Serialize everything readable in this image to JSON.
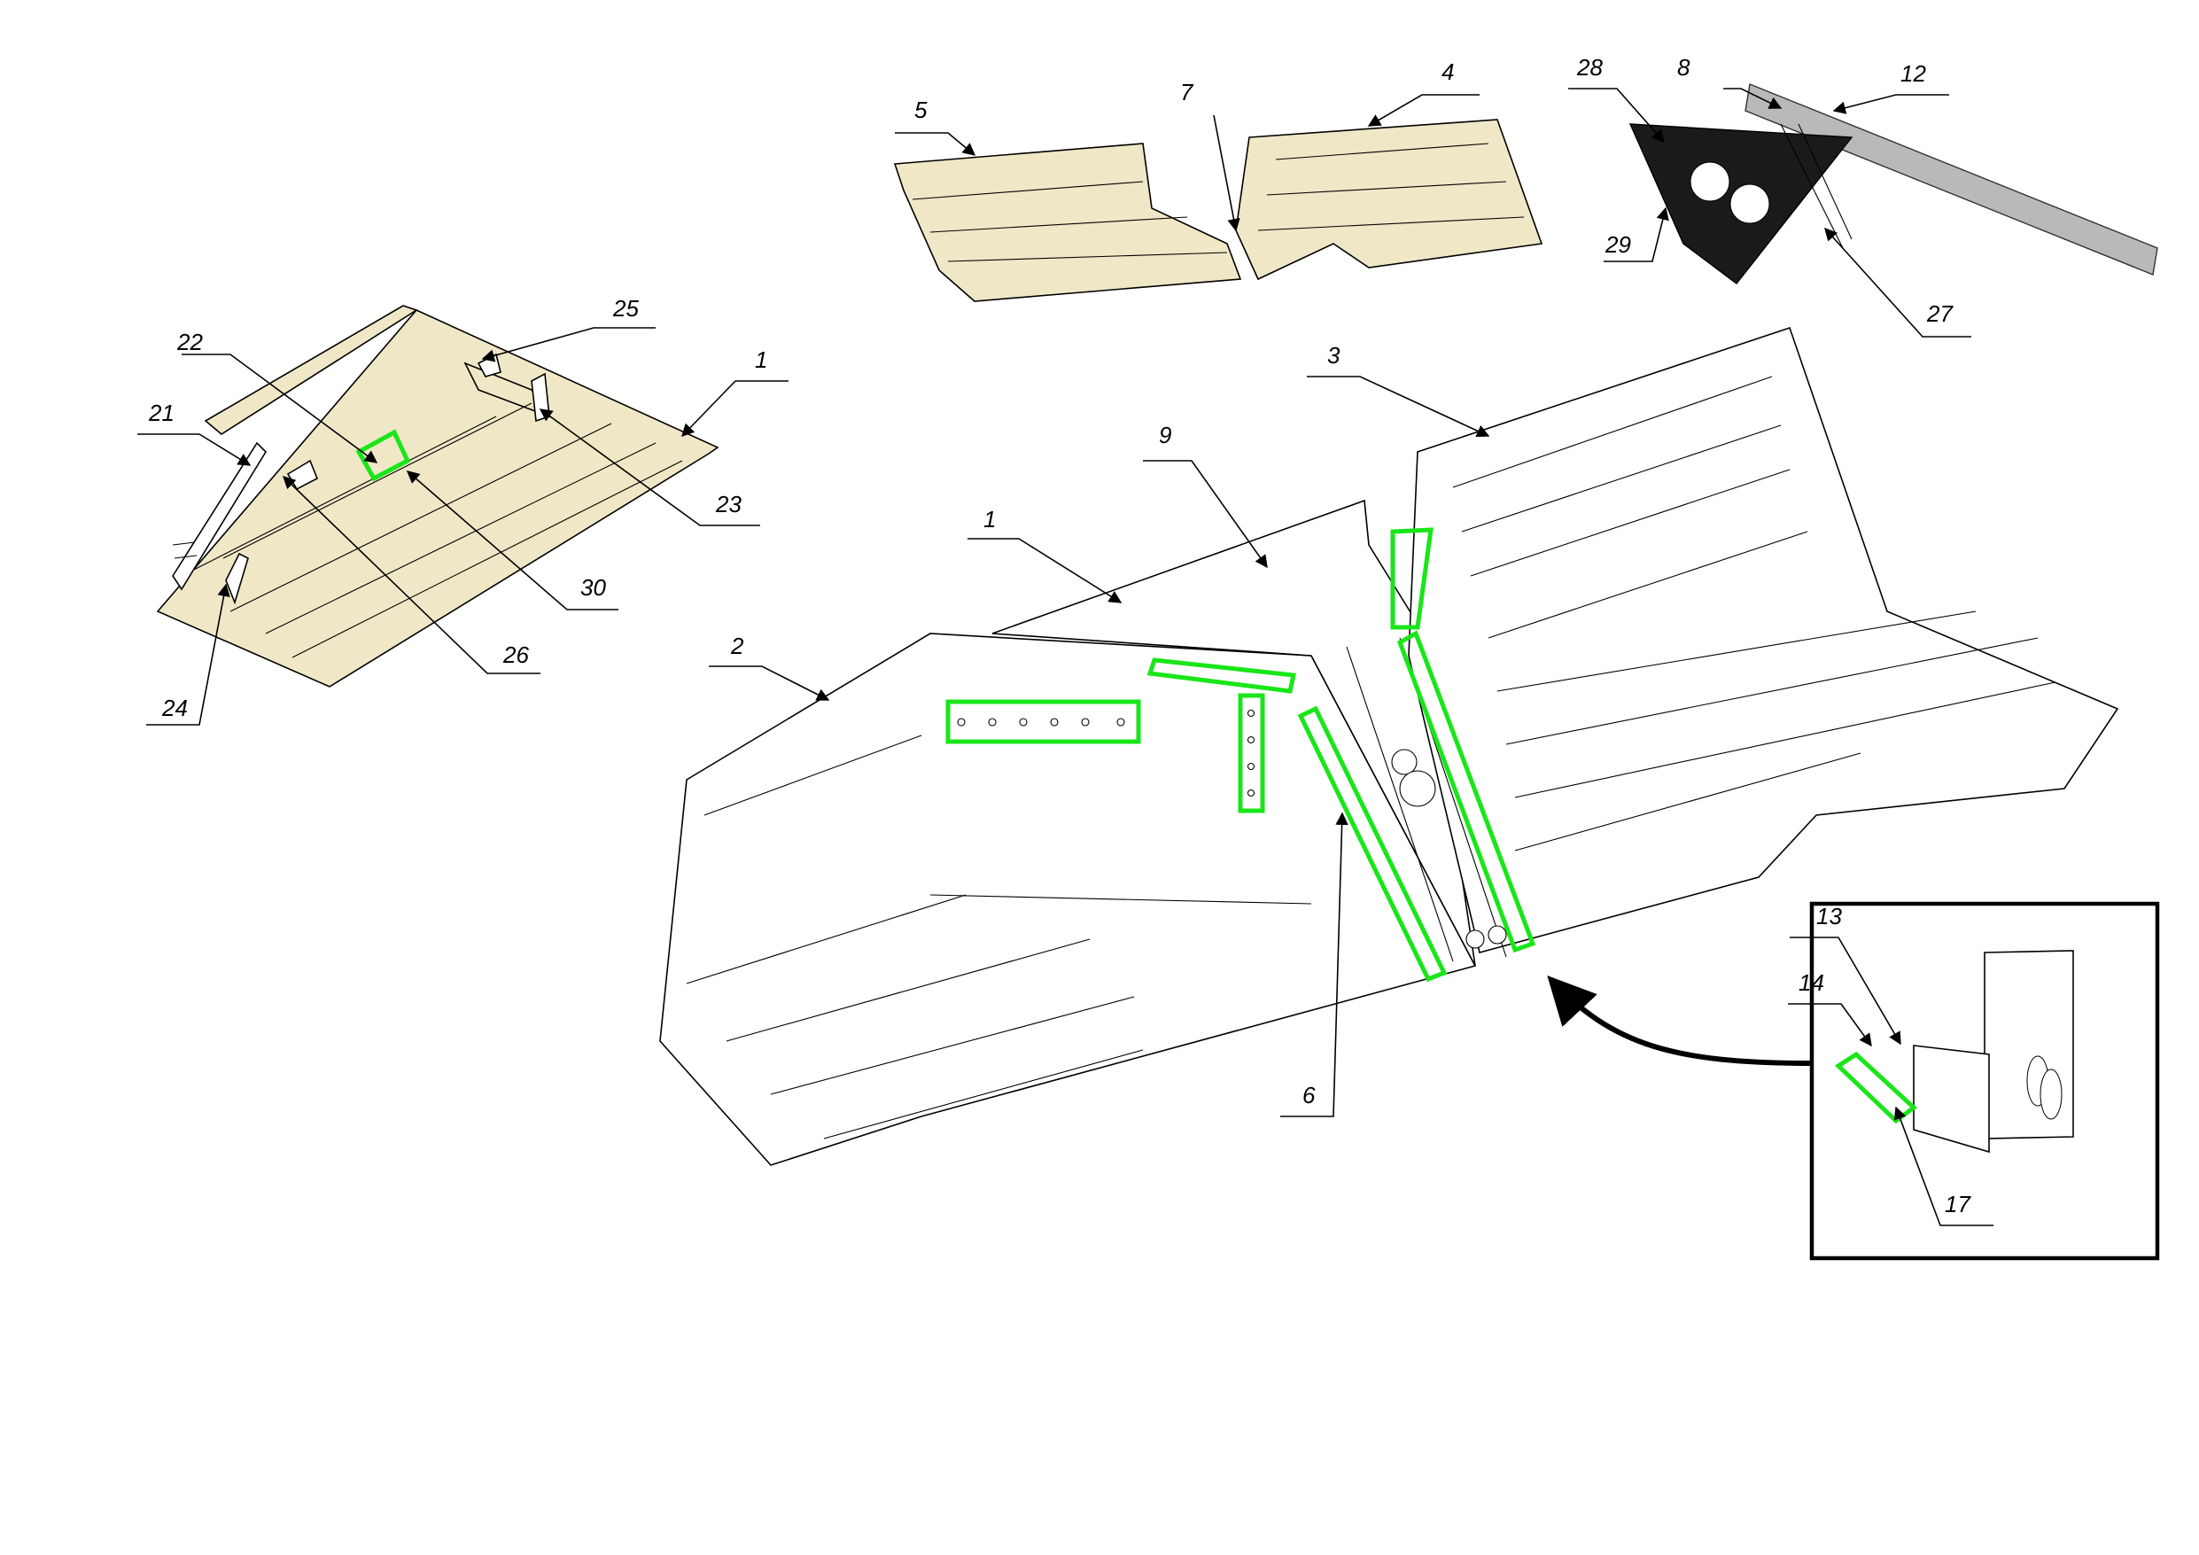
{
  "callouts": {
    "c1_detail": "1",
    "c21": "21",
    "c22": "22",
    "c23": "23",
    "c24": "24",
    "c25": "25",
    "c26": "26",
    "c30": "30",
    "c5": "5",
    "c7": "7",
    "c4": "4",
    "c28": "28",
    "c8": "8",
    "c12": "12",
    "c29": "29",
    "c27": "27",
    "c3": "3",
    "c9": "9",
    "c1_main": "1",
    "c2": "2",
    "c6": "6",
    "c13": "13",
    "c14": "14",
    "c17": "17"
  },
  "colors": {
    "highlight": "#19e619",
    "panel_beige": "#efe7c6",
    "bracket_dark": "#1a1a1a",
    "rail_grey": "#b9b9b9"
  }
}
